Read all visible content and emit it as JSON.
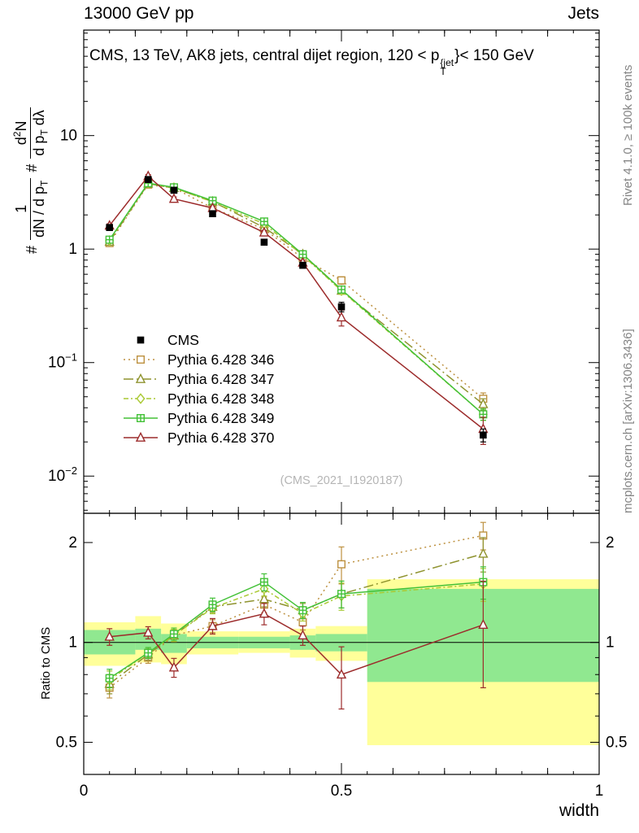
{
  "header": {
    "left": "13000 GeV pp",
    "right": "Jets"
  },
  "side_texts": {
    "rivet": "Rivet 4.1.0, ≥ 100k events",
    "mcplots": "mcplots.cern.ch [arXiv:1306.3436]"
  },
  "title": {
    "prefix": "CMS, 13 TeV, AK8 jets, central dijet region, 120 < p",
    "sup": "{jet",
    "sub": "T",
    "suffix": "}< 150 GeV"
  },
  "ylabel": {
    "hash1": "#",
    "f1num": "1",
    "f1den_base": "dN / d p",
    "f1den_sub": "T",
    "hash2": "#",
    "f2num_d": "d",
    "f2num_exp": "2",
    "f2num_n": "N",
    "f2den_base": "d p",
    "f2den_sub": "T",
    "f2den_end": " dλ"
  },
  "watermark": "(CMS_2021_I1920187)",
  "ratio_ylabel": "Ratio to CMS",
  "xlabel": "width",
  "chart_data": {
    "type": "line",
    "title": "CMS, 13 TeV, AK8 jets, central dijet region, 120 < p_T^{jet} < 150 GeV",
    "xlabel": "width",
    "ylabel": "# 1/(dN/dp_T) # d2N/(dp_T dlambda)",
    "ratio_ylabel": "Ratio to CMS",
    "legend_position": "middle-left",
    "grid": false,
    "xlim": [
      0,
      1
    ],
    "main_yscale": "log",
    "main_ylim": [
      0.0047,
      85
    ],
    "ratio_yscale": "log",
    "ratio_ylim": [
      0.4,
      2.45
    ],
    "x": [
      0.05,
      0.125,
      0.175,
      0.25,
      0.35,
      0.425,
      0.5,
      0.775
    ],
    "bin_edges": [
      0,
      0.1,
      0.15,
      0.2,
      0.3,
      0.4,
      0.45,
      0.55,
      1.0
    ],
    "xticks": {
      "labels": [
        {
          "v": 0,
          "t": "0"
        },
        {
          "v": 0.5,
          "t": "0.5"
        },
        {
          "v": 1,
          "t": "1"
        }
      ],
      "mid_step": 0.1,
      "minor_step": 0.05
    },
    "main_yticks": [
      {
        "v": 0.01,
        "base": "10",
        "exp": "−2"
      },
      {
        "v": 0.1,
        "base": "10",
        "exp": "−1"
      },
      {
        "v": 1,
        "base": "1",
        "exp": ""
      },
      {
        "v": 10,
        "base": "10",
        "exp": ""
      }
    ],
    "ratio_yticks": [
      {
        "v": 0.5,
        "t": "0.5"
      },
      {
        "v": 1,
        "t": "1"
      },
      {
        "v": 2,
        "t": "2"
      }
    ],
    "ratio_minor_yticks": [
      0.6,
      0.7,
      0.8,
      0.9
    ],
    "reference_line": 1,
    "series": [
      {
        "label": "CMS",
        "color": "#000000",
        "marker": "square-filled",
        "line": "none",
        "values": [
          1.55,
          4.1,
          3.3,
          2.05,
          1.15,
          0.72,
          0.31,
          0.023
        ],
        "yerr": [
          0.09,
          0.22,
          0.16,
          0.1,
          0.06,
          0.04,
          0.03,
          0.003
        ],
        "ratio": null,
        "ratio_err": null
      },
      {
        "label": "Pythia 6.428 346",
        "color": "#bd9140",
        "marker": "square-open",
        "line": "dotted",
        "values": [
          1.13,
          3.7,
          3.45,
          2.3,
          1.5,
          0.83,
          0.53,
          0.048
        ],
        "yerr": [
          0.05,
          0.12,
          0.11,
          0.08,
          0.05,
          0.03,
          0.04,
          0.006
        ],
        "ratio": [
          0.73,
          0.9,
          1.05,
          1.12,
          1.3,
          1.15,
          1.72,
          2.1
        ],
        "ratio_err": [
          0.05,
          0.035,
          0.045,
          0.05,
          0.07,
          0.06,
          0.22,
          0.2
        ]
      },
      {
        "label": "Pythia 6.428 347",
        "color": "#8f932f",
        "marker": "triangle-open",
        "line": "dashdot",
        "values": [
          1.16,
          3.77,
          3.45,
          2.62,
          1.55,
          0.9,
          0.43,
          0.043
        ],
        "yerr": [
          0.05,
          0.12,
          0.1,
          0.08,
          0.05,
          0.03,
          0.03,
          0.005
        ],
        "ratio": [
          0.75,
          0.92,
          1.05,
          1.28,
          1.35,
          1.25,
          1.4,
          1.85
        ],
        "ratio_err": [
          0.05,
          0.035,
          0.045,
          0.05,
          0.07,
          0.06,
          0.13,
          0.22
        ]
      },
      {
        "label": "Pythia 6.428 348",
        "color": "#a9c932",
        "marker": "diamond-open",
        "line": "dashdot2",
        "values": [
          1.19,
          3.81,
          3.47,
          2.6,
          1.67,
          0.88,
          0.43,
          0.035
        ],
        "yerr": [
          0.05,
          0.12,
          0.1,
          0.08,
          0.05,
          0.03,
          0.03,
          0.004
        ],
        "ratio": [
          0.77,
          0.93,
          1.05,
          1.27,
          1.45,
          1.22,
          1.38,
          1.5
        ],
        "ratio_err": [
          0.05,
          0.035,
          0.045,
          0.05,
          0.07,
          0.06,
          0.13,
          0.17
        ]
      },
      {
        "label": "Pythia 6.428 349",
        "color": "#43c137",
        "marker": "square-plus",
        "line": "solid",
        "values": [
          1.21,
          3.81,
          3.5,
          2.67,
          1.75,
          0.9,
          0.44,
          0.035
        ],
        "yerr": [
          0.05,
          0.12,
          0.1,
          0.08,
          0.05,
          0.03,
          0.03,
          0.004
        ],
        "ratio": [
          0.78,
          0.93,
          1.06,
          1.3,
          1.52,
          1.25,
          1.4,
          1.52
        ],
        "ratio_err": [
          0.05,
          0.035,
          0.045,
          0.06,
          0.09,
          0.07,
          0.13,
          0.17
        ]
      },
      {
        "label": "Pythia 6.428 370",
        "color": "#9c2b2b",
        "marker": "triangle-open",
        "line": "solid",
        "values": [
          1.61,
          4.39,
          2.77,
          2.3,
          1.4,
          0.76,
          0.25,
          0.026
        ],
        "yerr": [
          0.06,
          0.14,
          0.11,
          0.09,
          0.06,
          0.04,
          0.04,
          0.007
        ],
        "ratio": [
          1.04,
          1.07,
          0.84,
          1.12,
          1.22,
          1.05,
          0.8,
          1.13
        ],
        "ratio_err": [
          0.06,
          0.045,
          0.055,
          0.06,
          0.09,
          0.07,
          0.17,
          0.4
        ]
      }
    ],
    "bands": {
      "yellow_color": "#ffff9a",
      "green_color": "#90e890",
      "bins": [
        {
          "x0": 0,
          "x1": 0.1,
          "ylo": 0.85,
          "yhi": 1.15,
          "glo": 0.92,
          "ghi": 1.09
        },
        {
          "x0": 0.1,
          "x1": 0.15,
          "ylo": 0.87,
          "yhi": 1.2,
          "glo": 0.95,
          "ghi": 1.1
        },
        {
          "x0": 0.15,
          "x1": 0.2,
          "ylo": 0.86,
          "yhi": 1.14,
          "glo": 0.93,
          "ghi": 1.06
        },
        {
          "x0": 0.2,
          "x1": 0.3,
          "ylo": 0.92,
          "yhi": 1.08,
          "glo": 0.96,
          "ghi": 1.04
        },
        {
          "x0": 0.3,
          "x1": 0.4,
          "ylo": 0.93,
          "yhi": 1.08,
          "glo": 0.96,
          "ghi": 1.04
        },
        {
          "x0": 0.4,
          "x1": 0.45,
          "ylo": 0.9,
          "yhi": 1.1,
          "glo": 0.95,
          "ghi": 1.05
        },
        {
          "x0": 0.45,
          "x1": 0.55,
          "ylo": 0.88,
          "yhi": 1.12,
          "glo": 0.94,
          "ghi": 1.06
        },
        {
          "x0": 0.55,
          "x1": 1.0,
          "ylo": 0.49,
          "yhi": 1.55,
          "glo": 0.76,
          "ghi": 1.45
        }
      ]
    }
  }
}
